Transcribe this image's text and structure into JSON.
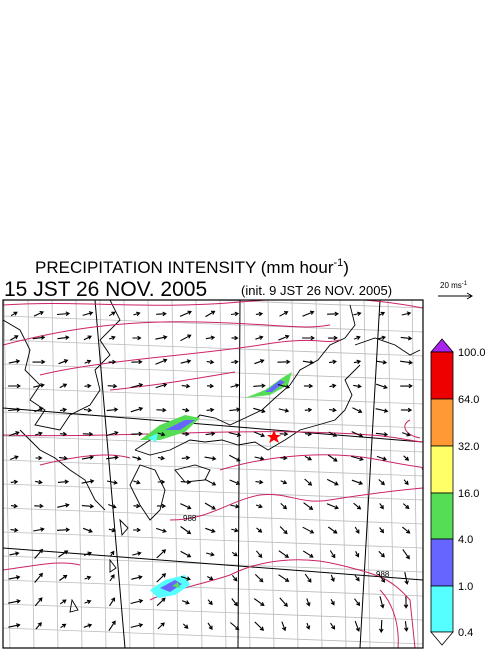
{
  "header": {
    "title": "PRECIPITATION INTENSITY (mm hour",
    "title_exponent": "-1",
    "title_end": ")",
    "valid_time": "15 JST 26 NOV. 2005",
    "init_time": "(init. 9 JST 26 NOV. 2005)"
  },
  "vector_legend": {
    "label": "20 ms",
    "exponent": "-1"
  },
  "colorbar": {
    "labels": [
      "100.0",
      "64.0",
      "32.0",
      "16.0",
      "4.0",
      "1.0",
      "0.4"
    ]
  },
  "isobar_labels": [
    "988",
    "988"
  ]
}
